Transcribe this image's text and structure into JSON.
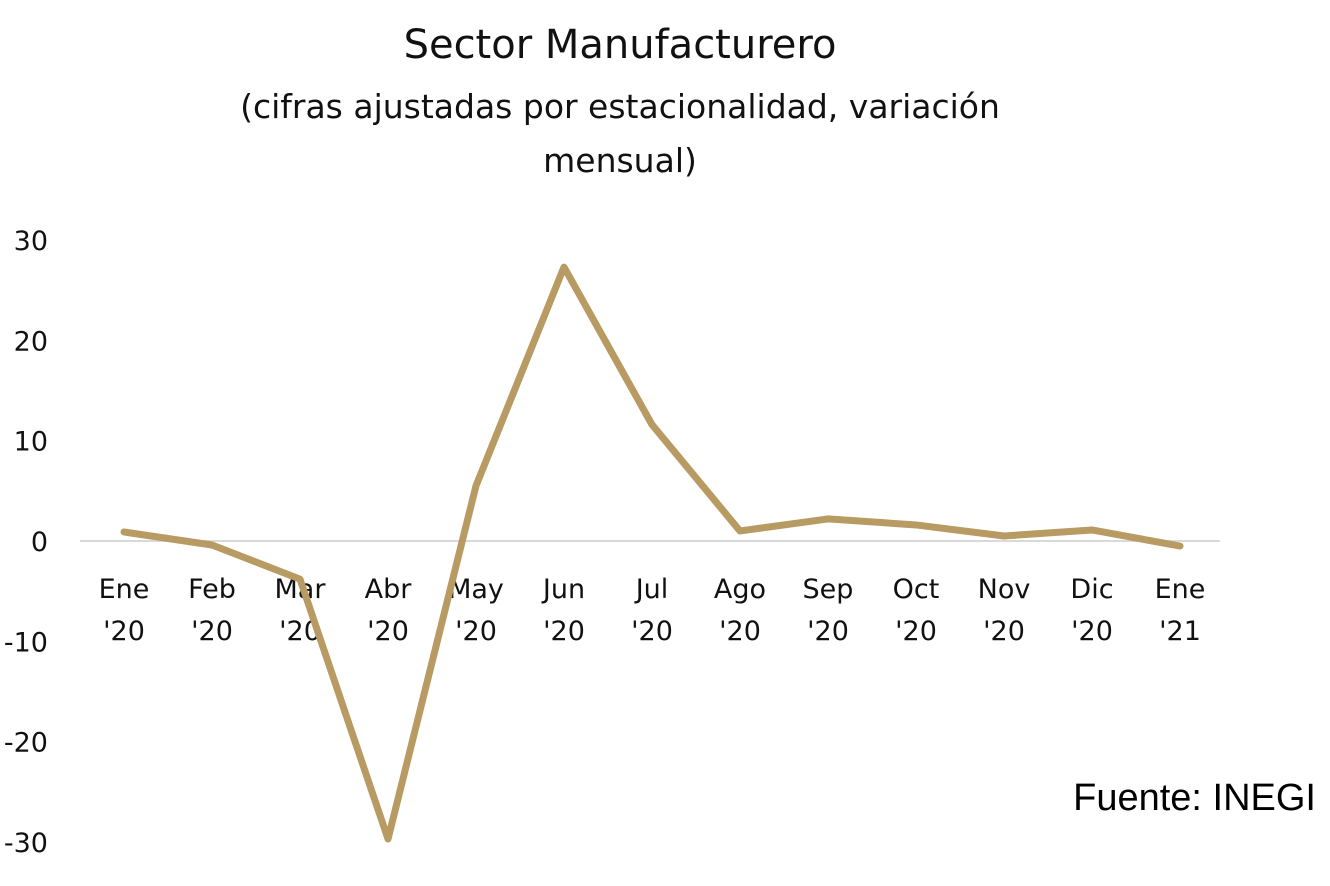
{
  "chart_data": {
    "type": "line",
    "title": "Sector Manufacturero",
    "subtitle_lines": [
      "(cifras ajustadas por estacionalidad, variación",
      "mensual)"
    ],
    "categories": [
      [
        "Ene",
        "'20"
      ],
      [
        "Feb",
        "'20"
      ],
      [
        "Mar",
        "'20"
      ],
      [
        "Abr",
        "'20"
      ],
      [
        "May",
        "'20"
      ],
      [
        "Jun",
        "'20"
      ],
      [
        "Jul",
        "'20"
      ],
      [
        "Ago",
        "'20"
      ],
      [
        "Sep",
        "'20"
      ],
      [
        "Oct",
        "'20"
      ],
      [
        "Nov",
        "'20"
      ],
      [
        "Dic",
        "'20"
      ],
      [
        "Ene",
        "'21"
      ]
    ],
    "series": [
      {
        "values": [
          0.9,
          -0.4,
          -3.8,
          -29.7,
          5.5,
          27.3,
          11.6,
          1.0,
          2.2,
          1.6,
          0.5,
          1.1,
          -0.5
        ],
        "color": "#b89a63"
      }
    ],
    "yticks": [
      "30",
      "20",
      "10",
      "0",
      "-10",
      "-20",
      "-30"
    ],
    "ylim": [
      -30,
      30
    ],
    "grid": false,
    "legend": "none",
    "zero_line_color": "#d9d9d9"
  },
  "source": "Fuente: INEGI"
}
